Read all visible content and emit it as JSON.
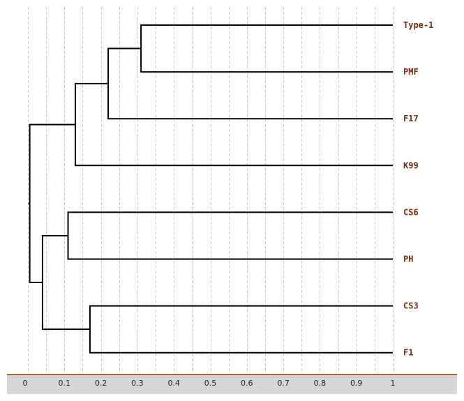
{
  "chart_data": {
    "type": "dendrogram",
    "axis": {
      "min": 0,
      "max": 1,
      "ticks": [
        0,
        0.1,
        0.2,
        0.3,
        0.4,
        0.5,
        0.6,
        0.7,
        0.8,
        0.9,
        1
      ],
      "tick_labels": [
        "0",
        "0.1",
        "0.2",
        "0.3",
        "0.4",
        "0.5",
        "0.6",
        "0.7",
        "0.8",
        "0.9",
        "1"
      ],
      "minor_gridlines_step": 0.05
    },
    "leaves": [
      "Type-1",
      "PMF",
      "F17",
      "K99",
      "CS6",
      "PH",
      "CS3",
      "F1"
    ],
    "merges": [
      {
        "id": "m1",
        "children": [
          "Type-1",
          "PMF"
        ],
        "height": 0.31
      },
      {
        "id": "m2",
        "children": [
          "m1",
          "F17"
        ],
        "height": 0.22
      },
      {
        "id": "m3",
        "children": [
          "m2",
          "K99"
        ],
        "height": 0.13
      },
      {
        "id": "m4",
        "children": [
          "CS6",
          "PH"
        ],
        "height": 0.11
      },
      {
        "id": "m5",
        "children": [
          "CS3",
          "F1"
        ],
        "height": 0.17
      },
      {
        "id": "m6",
        "children": [
          "m4",
          "m5"
        ],
        "height": 0.04
      },
      {
        "id": "m7",
        "children": [
          "m3",
          "m6"
        ],
        "height": 0.005
      }
    ],
    "colors": {
      "leaf_label": "#7a2e0c",
      "branch": "#000000",
      "grid": "#cccccc",
      "axis_bar": "#d6d6d6",
      "axis_line": "#a8643c"
    }
  }
}
